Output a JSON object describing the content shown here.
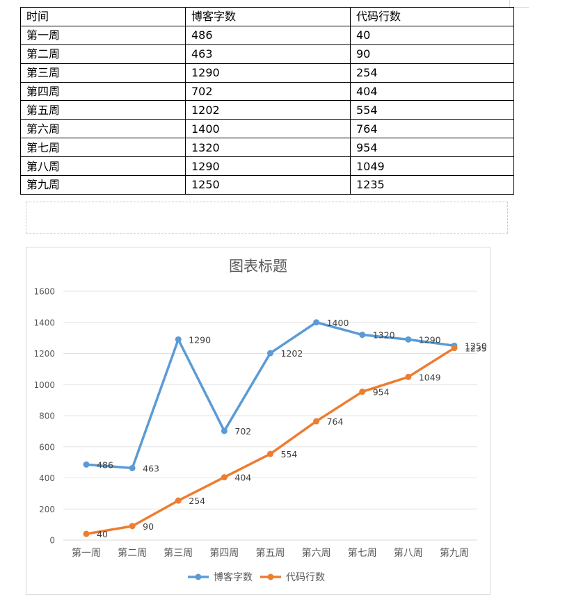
{
  "table": {
    "headers": [
      "时间",
      "博客字数",
      "代码行数"
    ],
    "rows": [
      [
        "第一周",
        "486",
        "40"
      ],
      [
        "第二周",
        "463",
        "90"
      ],
      [
        "第三周",
        "1290",
        "254"
      ],
      [
        "第四周",
        "702",
        "404"
      ],
      [
        "第五周",
        "1202",
        "554"
      ],
      [
        "第六周",
        "1400",
        "764"
      ],
      [
        "第七周",
        "1320",
        "954"
      ],
      [
        "第八周",
        "1290",
        "1049"
      ],
      [
        "第九周",
        "1250",
        "1235"
      ]
    ]
  },
  "chart_data": {
    "type": "line",
    "title": "图表标题",
    "xlabel": "",
    "ylabel": "",
    "categories": [
      "第一周",
      "第二周",
      "第三周",
      "第四周",
      "第五周",
      "第六周",
      "第七周",
      "第八周",
      "第九周"
    ],
    "series": [
      {
        "name": "博客字数",
        "color": "#5b9bd5",
        "values": [
          486,
          463,
          1290,
          702,
          1202,
          1400,
          1320,
          1290,
          1250
        ]
      },
      {
        "name": "代码行数",
        "color": "#ed7d31",
        "values": [
          40,
          90,
          254,
          404,
          554,
          764,
          954,
          1049,
          1235
        ]
      }
    ],
    "ylim": [
      0,
      1600
    ],
    "yticks": [
      0,
      200,
      400,
      600,
      800,
      1000,
      1200,
      1400,
      1600
    ],
    "grid": true,
    "legend": "bottom",
    "data_labels": true
  }
}
